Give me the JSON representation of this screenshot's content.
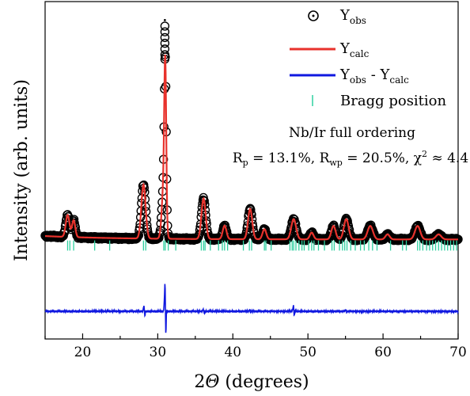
{
  "chart_data": {
    "type": "line",
    "xlabel_prefix": "2",
    "xlabel_symbol": "Θ",
    "xlabel_suffix": " (degrees)",
    "ylabel": "Intensity (arb. units)",
    "xlim": [
      15,
      70
    ],
    "ylim": [
      0,
      1
    ],
    "x_ticks": [
      20,
      30,
      40,
      50,
      60,
      70
    ],
    "grid": false,
    "legend_position": "top-right",
    "legend": [
      {
        "label": "Y",
        "sub": "obs",
        "marker": "circle-dot",
        "color": "#000000"
      },
      {
        "label": "Y",
        "sub": "calc",
        "marker": "line",
        "color": "#e8322c"
      },
      {
        "label_parts": [
          "Y",
          "obs",
          " - Y",
          "calc"
        ],
        "marker": "line",
        "color": "#1018e0"
      },
      {
        "label": "Bragg position",
        "marker": "tick",
        "color": "#2fd0a0"
      }
    ],
    "annotation_title": "Nb/Ir full ordering",
    "annotation_stats": {
      "rp_label": "R",
      "rp_sub": "p",
      "rp_value": " = 13.1%, ",
      "rwp_label": "R",
      "rwp_sub": "wp",
      "rwp_value": " = 20.5%, ",
      "chi_label": "χ",
      "chi_sup": "2",
      "chi_value": " ≈ 4.4"
    },
    "baseline_profile": 0.295,
    "peaks": [
      {
        "x": 18.0,
        "height": 0.065,
        "width": 0.35
      },
      {
        "x": 18.8,
        "height": 0.05,
        "width": 0.3
      },
      {
        "x": 28.1,
        "height": 0.16,
        "width": 0.4
      },
      {
        "x": 30.8,
        "height": 0.16,
        "width": 0.35
      },
      {
        "x": 31.0,
        "height": 0.43,
        "width": 0.18
      },
      {
        "x": 36.1,
        "height": 0.12,
        "width": 0.4
      },
      {
        "x": 38.9,
        "height": 0.04,
        "width": 0.35
      },
      {
        "x": 42.3,
        "height": 0.09,
        "width": 0.4
      },
      {
        "x": 44.2,
        "height": 0.03,
        "width": 0.35
      },
      {
        "x": 48.1,
        "height": 0.06,
        "width": 0.45
      },
      {
        "x": 50.5,
        "height": 0.02,
        "width": 0.35
      },
      {
        "x": 53.4,
        "height": 0.04,
        "width": 0.4
      },
      {
        "x": 55.1,
        "height": 0.06,
        "width": 0.45
      },
      {
        "x": 58.3,
        "height": 0.04,
        "width": 0.5
      },
      {
        "x": 60.6,
        "height": 0.015,
        "width": 0.4
      },
      {
        "x": 64.6,
        "height": 0.04,
        "width": 0.5
      },
      {
        "x": 67.4,
        "height": 0.015,
        "width": 0.5
      }
    ],
    "bragg_positions": [
      18.0,
      18.3,
      18.8,
      21.6,
      23.6,
      28.1,
      28.4,
      30.8,
      31.0,
      31.4,
      32.4,
      35.8,
      36.1,
      36.3,
      37.0,
      38.1,
      38.6,
      38.9,
      39.3,
      41.4,
      42.2,
      42.5,
      44.2,
      44.4,
      45.1,
      47.6,
      47.9,
      48.1,
      48.4,
      48.8,
      49.2,
      49.5,
      50.1,
      50.5,
      50.8,
      51.4,
      52.2,
      53.2,
      53.5,
      54.2,
      54.6,
      54.9,
      55.2,
      55.7,
      56.3,
      57.0,
      57.5,
      58.1,
      58.6,
      59.2,
      61.0,
      62.6,
      63.1,
      64.6,
      64.9,
      65.3,
      65.8,
      66.2,
      66.6,
      67.0,
      67.4,
      67.8,
      68.2,
      68.6,
      69.0,
      69.4,
      69.8
    ],
    "difference_baseline": 0.082,
    "difference_features": [
      {
        "x": 28.2,
        "amp": 0.02
      },
      {
        "x": 31.0,
        "amp": 0.1
      },
      {
        "x": 36.1,
        "amp": 0.008
      },
      {
        "x": 42.3,
        "amp": 0.006
      },
      {
        "x": 48.1,
        "amp": 0.02
      },
      {
        "x": 55.1,
        "amp": 0.005
      }
    ]
  },
  "colors": {
    "observed": "#000000",
    "calculated": "#e8322c",
    "difference": "#1018e0",
    "bragg": "#2fd0a0"
  }
}
